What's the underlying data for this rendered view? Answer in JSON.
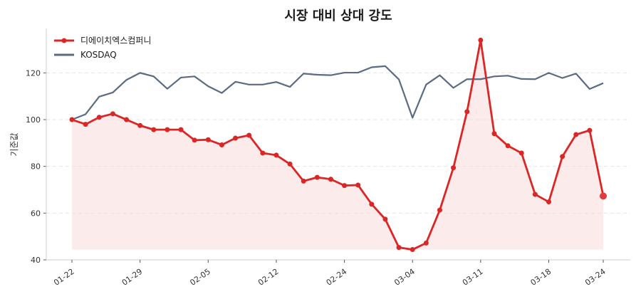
{
  "chart_data": {
    "type": "line",
    "title": "시장 대비 상대 강도",
    "xlabel": "",
    "ylabel": "기준값",
    "ylim": [
      40,
      139
    ],
    "yticks": [
      40,
      60,
      80,
      100,
      120
    ],
    "grid": true,
    "legend_position": "top-left",
    "x_tick_labels": [
      {
        "index": 0,
        "label": "01-22"
      },
      {
        "index": 5,
        "label": "01-29"
      },
      {
        "index": 10,
        "label": "02-05"
      },
      {
        "index": 15,
        "label": "02-12"
      },
      {
        "index": 20,
        "label": "02-24"
      },
      {
        "index": 25,
        "label": "03-04"
      },
      {
        "index": 30,
        "label": "03-11"
      },
      {
        "index": 35,
        "label": "03-18"
      },
      {
        "index": 39,
        "label": "03-24"
      }
    ],
    "point_count": 40,
    "series": [
      {
        "name": "디에이치엑스컴퍼니",
        "color": "#dc2626",
        "markers": true,
        "fill": true,
        "fill_color": "#f8dede",
        "values": [
          100,
          98,
          101,
          102.5,
          100,
          97.5,
          95.7,
          95.7,
          95.7,
          91.2,
          91.4,
          89.2,
          92.1,
          93.3,
          85.7,
          84.8,
          81,
          73.7,
          75.3,
          74.5,
          71.8,
          72,
          63.8,
          57.4,
          45.3,
          44.4,
          47.2,
          61.3,
          79.4,
          103.4,
          134,
          94,
          88.8,
          85.7,
          68,
          64.8,
          84.2,
          93.6,
          95.4,
          67.3
        ]
      },
      {
        "name": "KOSDAQ",
        "color": "#5b6b82",
        "markers": false,
        "fill": false,
        "values": [
          100,
          102.3,
          109.8,
          111.6,
          117,
          120,
          118.5,
          113.2,
          118,
          118.5,
          114.3,
          111.4,
          116.2,
          115,
          115,
          116.1,
          114,
          119.7,
          119.2,
          119,
          120.1,
          120.1,
          122.4,
          122.9,
          117.2,
          100.8,
          115,
          119,
          113.6,
          117.3,
          117.3,
          118.5,
          118.8,
          117.4,
          117.3,
          120,
          117.8,
          119.7,
          113.1,
          115.6
        ]
      }
    ]
  }
}
